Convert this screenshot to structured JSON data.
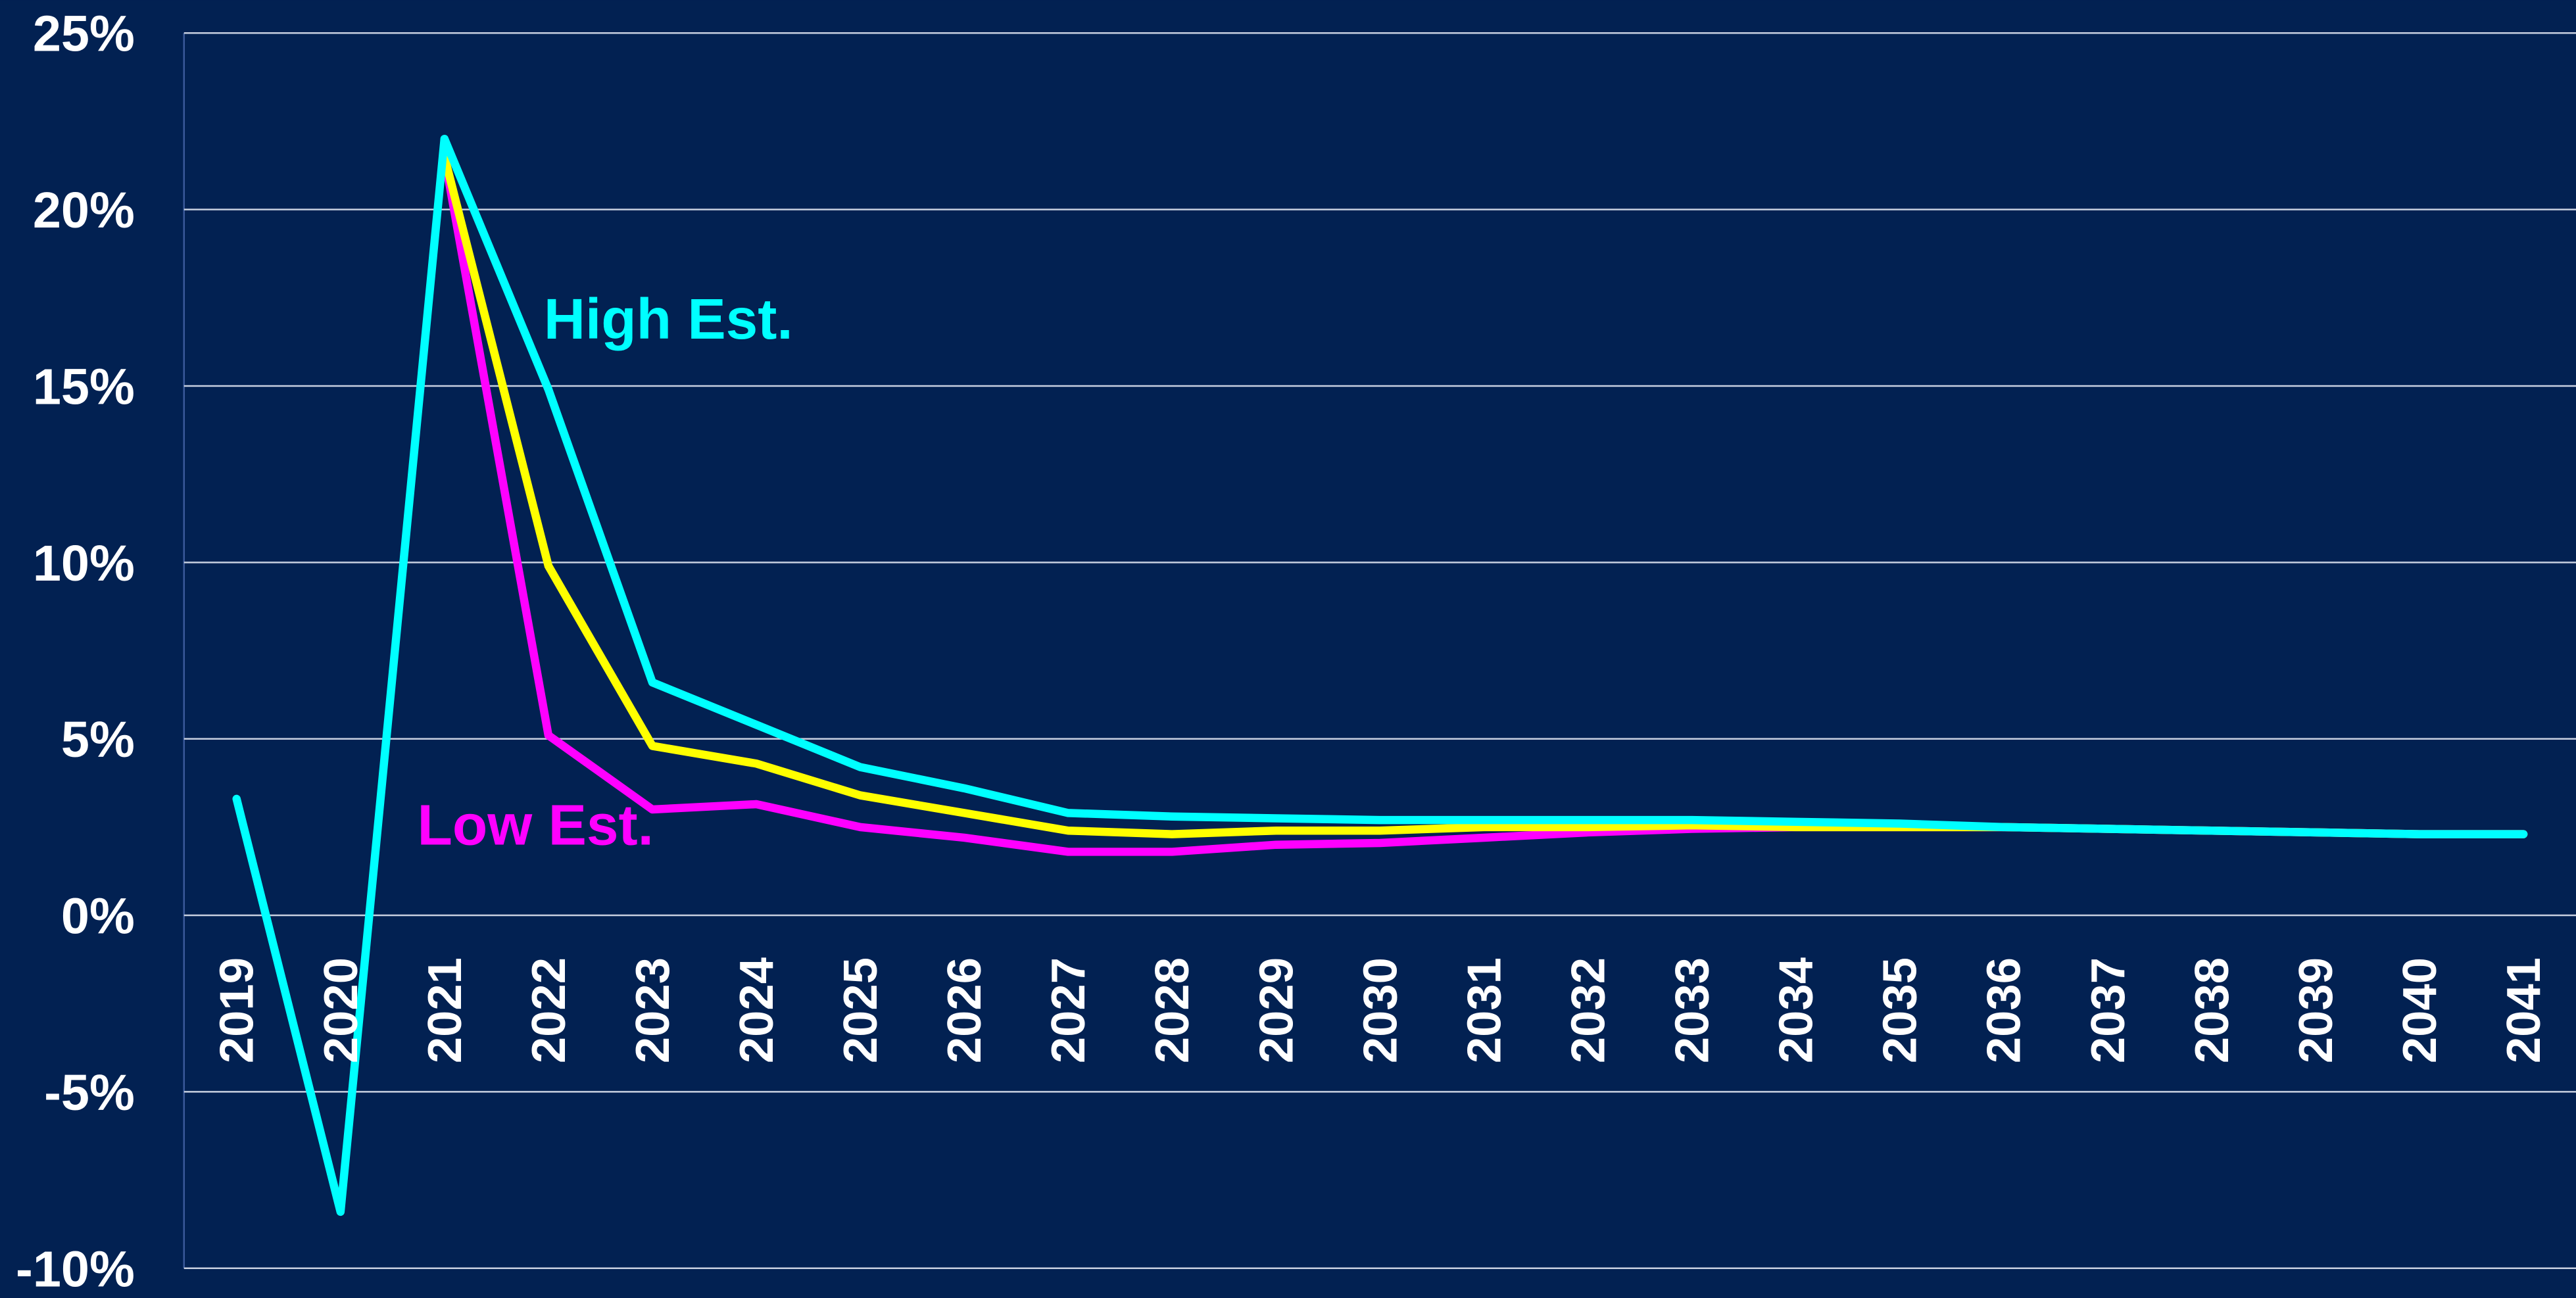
{
  "chart_data": {
    "type": "line",
    "categories": [
      "2019",
      "2020",
      "2021",
      "2022",
      "2023",
      "2024",
      "2025",
      "2026",
      "2027",
      "2028",
      "2029",
      "2030",
      "2031",
      "2032",
      "2033",
      "2034",
      "2035",
      "2036",
      "2037",
      "2038",
      "2039",
      "2040",
      "2041"
    ],
    "series": [
      {
        "name": "Low Est.",
        "color": "#ff00ff",
        "values": [
          null,
          null,
          21.5,
          5.1,
          3.0,
          3.15,
          2.5,
          2.2,
          1.8,
          1.8,
          2.0,
          2.05,
          2.2,
          2.35,
          2.45,
          2.5,
          2.5,
          2.5,
          2.45,
          2.4,
          2.35,
          2.3,
          2.3
        ]
      },
      {
        "color": "#ffff00",
        "values": [
          null,
          null,
          21.5,
          9.9,
          4.8,
          4.3,
          3.4,
          2.9,
          2.4,
          2.3,
          2.4,
          2.4,
          2.5,
          2.5,
          2.55,
          2.5,
          2.5,
          2.5,
          2.45,
          2.4,
          2.35,
          2.3,
          2.3
        ]
      },
      {
        "name": "High Est.",
        "color": "#00ffff",
        "values": [
          3.3,
          -8.4,
          22.0,
          14.9,
          6.6,
          5.4,
          4.2,
          3.6,
          2.9,
          2.8,
          2.75,
          2.7,
          2.7,
          2.7,
          2.7,
          2.65,
          2.6,
          2.5,
          2.45,
          2.4,
          2.35,
          2.3,
          2.3
        ]
      }
    ],
    "ylim": [
      -10,
      25
    ],
    "yticks": [
      {
        "value": -10,
        "label": "-10%"
      },
      {
        "value": -5,
        "label": "-5%"
      },
      {
        "value": 0,
        "label": "0%"
      },
      {
        "value": 5,
        "label": "5%"
      },
      {
        "value": 10,
        "label": "10%"
      },
      {
        "value": 15,
        "label": "15%"
      },
      {
        "value": 20,
        "label": "20%"
      },
      {
        "value": 25,
        "label": "25%"
      }
    ],
    "grid": true
  }
}
